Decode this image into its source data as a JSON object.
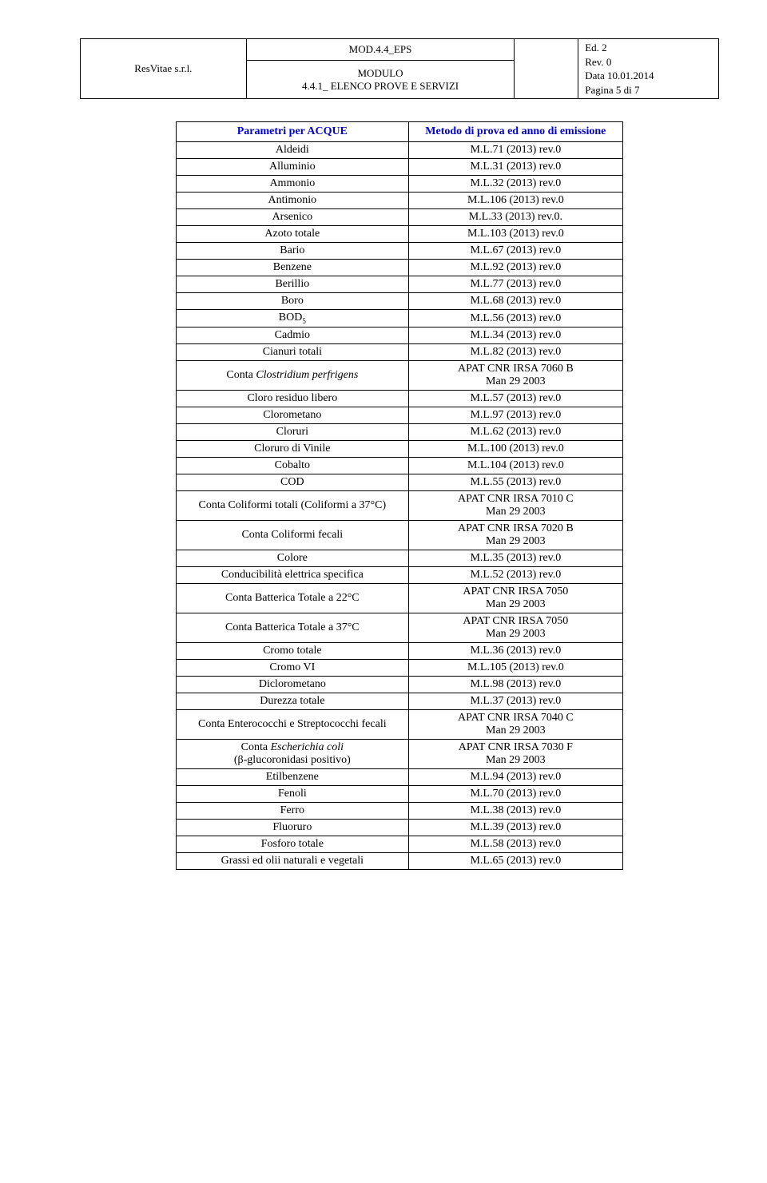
{
  "header": {
    "org": "ResVitae s.r.l.",
    "mod_top": "MOD.4.4_EPS",
    "mod_b1": "MODULO",
    "mod_b2": "4.4.1_ ELENCO PROVE E SERVIZI",
    "ed": "Ed. 2",
    "rev": "Rev. 0",
    "date": "Data 10.01.2014",
    "page": "Pagina 5 di 7"
  },
  "table": {
    "head_param": "Parametri per ACQUE",
    "head_method": "Metodo di prova ed anno di emissione",
    "rows": [
      {
        "p": "Aldeidi",
        "m": "M.L.71 (2013) rev.0"
      },
      {
        "p": "Alluminio",
        "m": "M.L.31 (2013) rev.0"
      },
      {
        "p": "Ammonio",
        "m": "M.L.32 (2013) rev.0"
      },
      {
        "p": "Antimonio",
        "m": "M.L.106 (2013) rev.0"
      },
      {
        "p": "Arsenico",
        "m": "M.L.33 (2013) rev.0."
      },
      {
        "p": "Azoto totale",
        "m": "M.L.103 (2013) rev.0"
      },
      {
        "p": "Bario",
        "m": "M.L.67 (2013) rev.0"
      },
      {
        "p": "Benzene",
        "m": "M.L.92 (2013) rev.0"
      },
      {
        "p": "Berillio",
        "m": "M.L.77 (2013) rev.0"
      },
      {
        "p": "Boro",
        "m": "M.L.68 (2013) rev.0"
      },
      {
        "p": "BOD",
        "sub": "5",
        "m": "M.L.56 (2013) rev.0"
      },
      {
        "p": "Cadmio",
        "m": "M.L.34 (2013) rev.0"
      },
      {
        "p": "Cianuri totali",
        "m": "M.L.82 (2013) rev.0"
      },
      {
        "p": "Conta ",
        "em": "Clostridium perfrigens",
        "m": "APAT CNR IRSA 7060 B Man 29 2003",
        "two": true
      },
      {
        "p": "Cloro residuo libero",
        "m": "M.L.57 (2013) rev.0"
      },
      {
        "p": "Clorometano",
        "m": "M.L.97 (2013) rev.0"
      },
      {
        "p": "Cloruri",
        "m": "M.L.62 (2013) rev.0"
      },
      {
        "p": "Cloruro di Vinile",
        "m": "M.L.100 (2013) rev.0",
        "tall": true
      },
      {
        "p": "Cobalto",
        "m": "M.L.104 (2013) rev.0",
        "tall": true
      },
      {
        "p": "COD",
        "m": "M.L.55 (2013) rev.0"
      },
      {
        "p": "Conta Coliformi totali (Coliformi a 37°C)",
        "m": "APAT CNR IRSA 7010 C Man 29 2003",
        "two": true
      },
      {
        "p": "Conta Coliformi fecali",
        "m": "APAT CNR IRSA 7020 B Man 29 2003",
        "two": true
      },
      {
        "p": "Colore",
        "m": "M.L.35 (2013) rev.0"
      },
      {
        "p": "Conducibilità elettrica specifica",
        "m": "M.L.52 (2013) rev.0",
        "tall": true
      },
      {
        "p": "Conta Batterica Totale a 22°C",
        "m": "APAT CNR IRSA 7050 Man 29 2003",
        "two": true
      },
      {
        "p": "Conta Batterica Totale a 37°C",
        "m": "APAT CNR IRSA 7050 Man 29 2003",
        "two": true
      },
      {
        "p": "Cromo totale",
        "m": "M.L.36 (2013) rev.0"
      },
      {
        "p": "Cromo VI",
        "m": "M.L.105 (2013) rev.0"
      },
      {
        "p": "Diclorometano",
        "m": "M.L.98 (2013) rev.0"
      },
      {
        "p": "Durezza totale",
        "m": "M.L.37 (2013) rev.0"
      },
      {
        "p": "Conta Enterococchi e Streptococchi fecali",
        "m": "APAT CNR IRSA 7040 C Man 29 2003",
        "two": true,
        "gapBefore": true
      },
      {
        "p": "Conta ",
        "em": "Escherichia coli",
        "p2": " (β-glucoronidasi positivo)",
        "m": "APAT CNR IRSA 7030 F Man 29 2003",
        "two": true
      },
      {
        "p": "Etilbenzene",
        "m": "M.L.94 (2013) rev.0",
        "tall": true
      },
      {
        "p": "Fenoli",
        "m": "M.L.70 (2013) rev.0"
      },
      {
        "p": "Ferro",
        "m": "M.L.38 (2013) rev.0",
        "tall": true
      },
      {
        "p": "Fluoruro",
        "m": "M.L.39 (2013) rev.0"
      },
      {
        "p": "Fosforo totale",
        "m": "M.L.58 (2013) rev.0",
        "tall": true
      },
      {
        "p": "Grassi ed olii naturali e vegetali",
        "m": "M.L.65 (2013) rev.0"
      }
    ]
  }
}
